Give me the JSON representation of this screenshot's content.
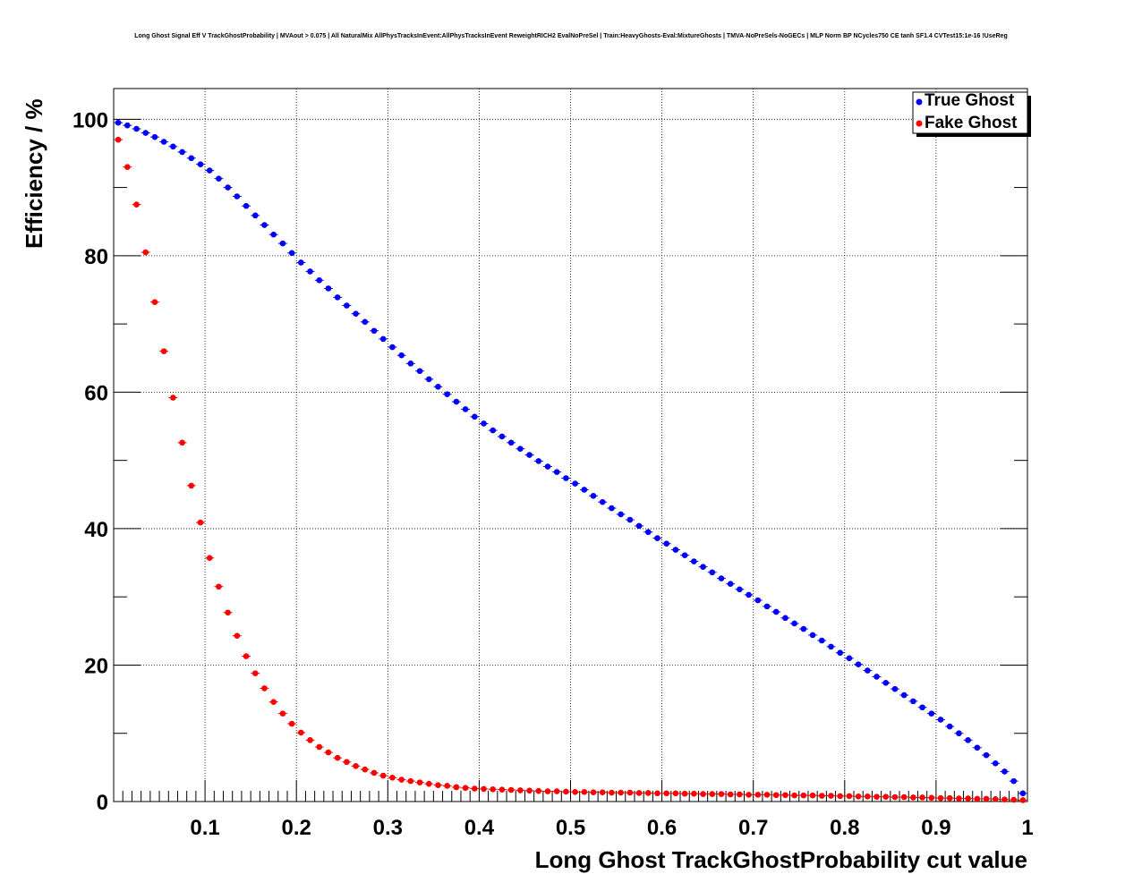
{
  "chart_data": {
    "type": "scatter",
    "title": "Long Ghost Signal Eff V TrackGhostProbability | MVAout > 0.075 | All NaturalMix AllPhysTracksInEvent:AllPhysTracksInEvent ReweightRICH2 EvalNoPreSel | Train:HeavyGhosts-Eval:MixtureGhosts | TMVA-NoPreSels-NoGECs | MLP Norm BP NCycles750 CE tanh SF1.4 CVTest15:1e-16 !UseReg",
    "xlabel": "Long Ghost TrackGhostProbability cut value",
    "ylabel": "Efficiency / %",
    "xlim": [
      0,
      1
    ],
    "ylim": [
      0,
      104.5
    ],
    "xticks": [
      0.1,
      0.2,
      0.3,
      0.4,
      0.5,
      0.6,
      0.7,
      0.8,
      0.9,
      1
    ],
    "xtick_labels": [
      "0.1",
      "0.2",
      "0.3",
      "0.4",
      "0.5",
      "0.6",
      "0.7",
      "0.8",
      "0.9",
      "1"
    ],
    "yticks": [
      0,
      20,
      40,
      60,
      80,
      100
    ],
    "ytick_labels": [
      "0",
      "20",
      "40",
      "60",
      "80",
      "100"
    ],
    "grid": true,
    "legend_position": "top-right",
    "x_start": 0.005,
    "x_step": 0.01,
    "series": [
      {
        "name": "True Ghost",
        "color": "#0000ff",
        "values": [
          99.5,
          99.1,
          98.6,
          98.0,
          97.4,
          96.7,
          96.0,
          95.2,
          94.3,
          93.4,
          92.5,
          91.3,
          90.0,
          88.7,
          87.3,
          85.9,
          84.5,
          83.1,
          81.8,
          80.4,
          79.0,
          77.7,
          76.4,
          75.2,
          73.9,
          72.7,
          71.5,
          70.3,
          69.0,
          67.8,
          66.6,
          65.4,
          64.2,
          63.1,
          61.9,
          60.8,
          59.7,
          58.6,
          57.5,
          56.4,
          55.4,
          54.4,
          53.5,
          52.6,
          51.7,
          50.8,
          49.9,
          49.1,
          48.3,
          47.4,
          46.6,
          45.7,
          44.8,
          43.9,
          43.0,
          42.1,
          41.3,
          40.4,
          39.5,
          38.6,
          37.8,
          36.9,
          36.1,
          35.2,
          34.4,
          33.6,
          32.7,
          31.9,
          31.1,
          30.3,
          29.5,
          28.6,
          27.8,
          26.9,
          26.1,
          25.3,
          24.4,
          23.6,
          22.7,
          21.8,
          21.0,
          20.1,
          19.2,
          18.3,
          17.4,
          16.5,
          15.6,
          14.7,
          13.8,
          12.9,
          12.0,
          11.0,
          10.0,
          9.0,
          7.9,
          6.8,
          5.6,
          4.4,
          3.0,
          1.2
        ]
      },
      {
        "name": "Fake Ghost",
        "color": "#ff0000",
        "values": [
          97,
          93,
          87.5,
          80.5,
          73.2,
          66,
          59.2,
          52.6,
          46.3,
          40.9,
          35.7,
          31.5,
          27.7,
          24.3,
          21.3,
          18.8,
          16.6,
          14.6,
          12.9,
          11.4,
          10.1,
          9.0,
          8.0,
          7.2,
          6.4,
          5.8,
          5.2,
          4.7,
          4.2,
          3.8,
          3.5,
          3.2,
          3.0,
          2.8,
          2.6,
          2.4,
          2.3,
          2.1,
          2.0,
          1.9,
          1.85,
          1.8,
          1.75,
          1.7,
          1.65,
          1.6,
          1.55,
          1.5,
          1.5,
          1.45,
          1.4,
          1.4,
          1.35,
          1.35,
          1.3,
          1.3,
          1.3,
          1.25,
          1.25,
          1.2,
          1.2,
          1.2,
          1.15,
          1.15,
          1.1,
          1.1,
          1.1,
          1.05,
          1.05,
          1.0,
          1.0,
          1.0,
          0.95,
          0.95,
          0.9,
          0.9,
          0.9,
          0.85,
          0.85,
          0.8,
          0.8,
          0.75,
          0.75,
          0.7,
          0.7,
          0.65,
          0.65,
          0.6,
          0.6,
          0.55,
          0.5,
          0.5,
          0.45,
          0.45,
          0.4,
          0.4,
          0.35,
          0.3,
          0.25,
          0.2
        ]
      }
    ]
  }
}
